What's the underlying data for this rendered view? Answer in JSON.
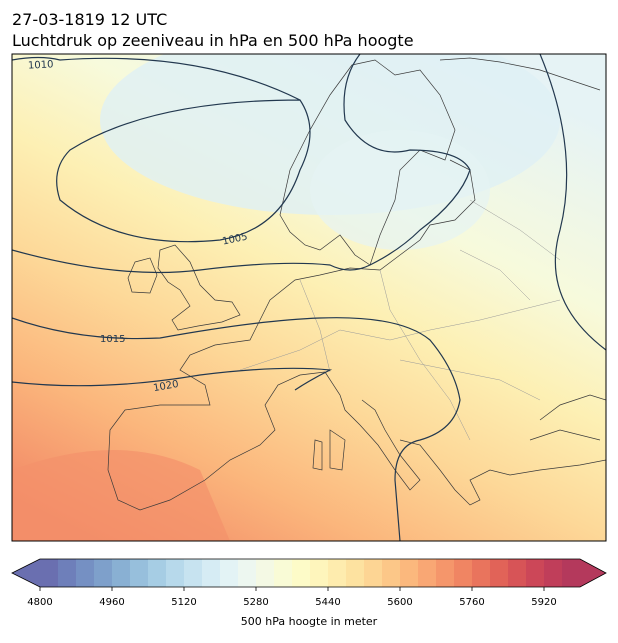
{
  "title": "27-03-1819 12 UTC",
  "subtitle": "Luchtdruk op zeeniveau in hPa en 500 hPa hoogte",
  "isobar_labels": [
    "1010",
    "1005",
    "1015",
    "1020"
  ],
  "colorbar": {
    "label": "500 hPa hoogte in meter",
    "range": [
      4800,
      6000
    ],
    "ticks": [
      4800,
      4960,
      5120,
      5280,
      5440,
      5600,
      5760,
      5920
    ],
    "colors": [
      "#6a6fb0",
      "#6e7fba",
      "#7590c3",
      "#7ea0cb",
      "#89b0d3",
      "#97bfdc",
      "#a6cde4",
      "#b7d9eb",
      "#c7e3f0",
      "#d6ecf4",
      "#e3f3f5",
      "#edf7f0",
      "#f4f9e4",
      "#f9fbd6",
      "#fdfbc8",
      "#fef5bc",
      "#feecae",
      "#fde2a0",
      "#fdd594",
      "#fcc788",
      "#fbb87d",
      "#f9a774",
      "#f5966b",
      "#f08563",
      "#e9745d",
      "#e16358",
      "#d75457",
      "#cc4758",
      "#c03e5a",
      "#b4395c"
    ]
  }
}
